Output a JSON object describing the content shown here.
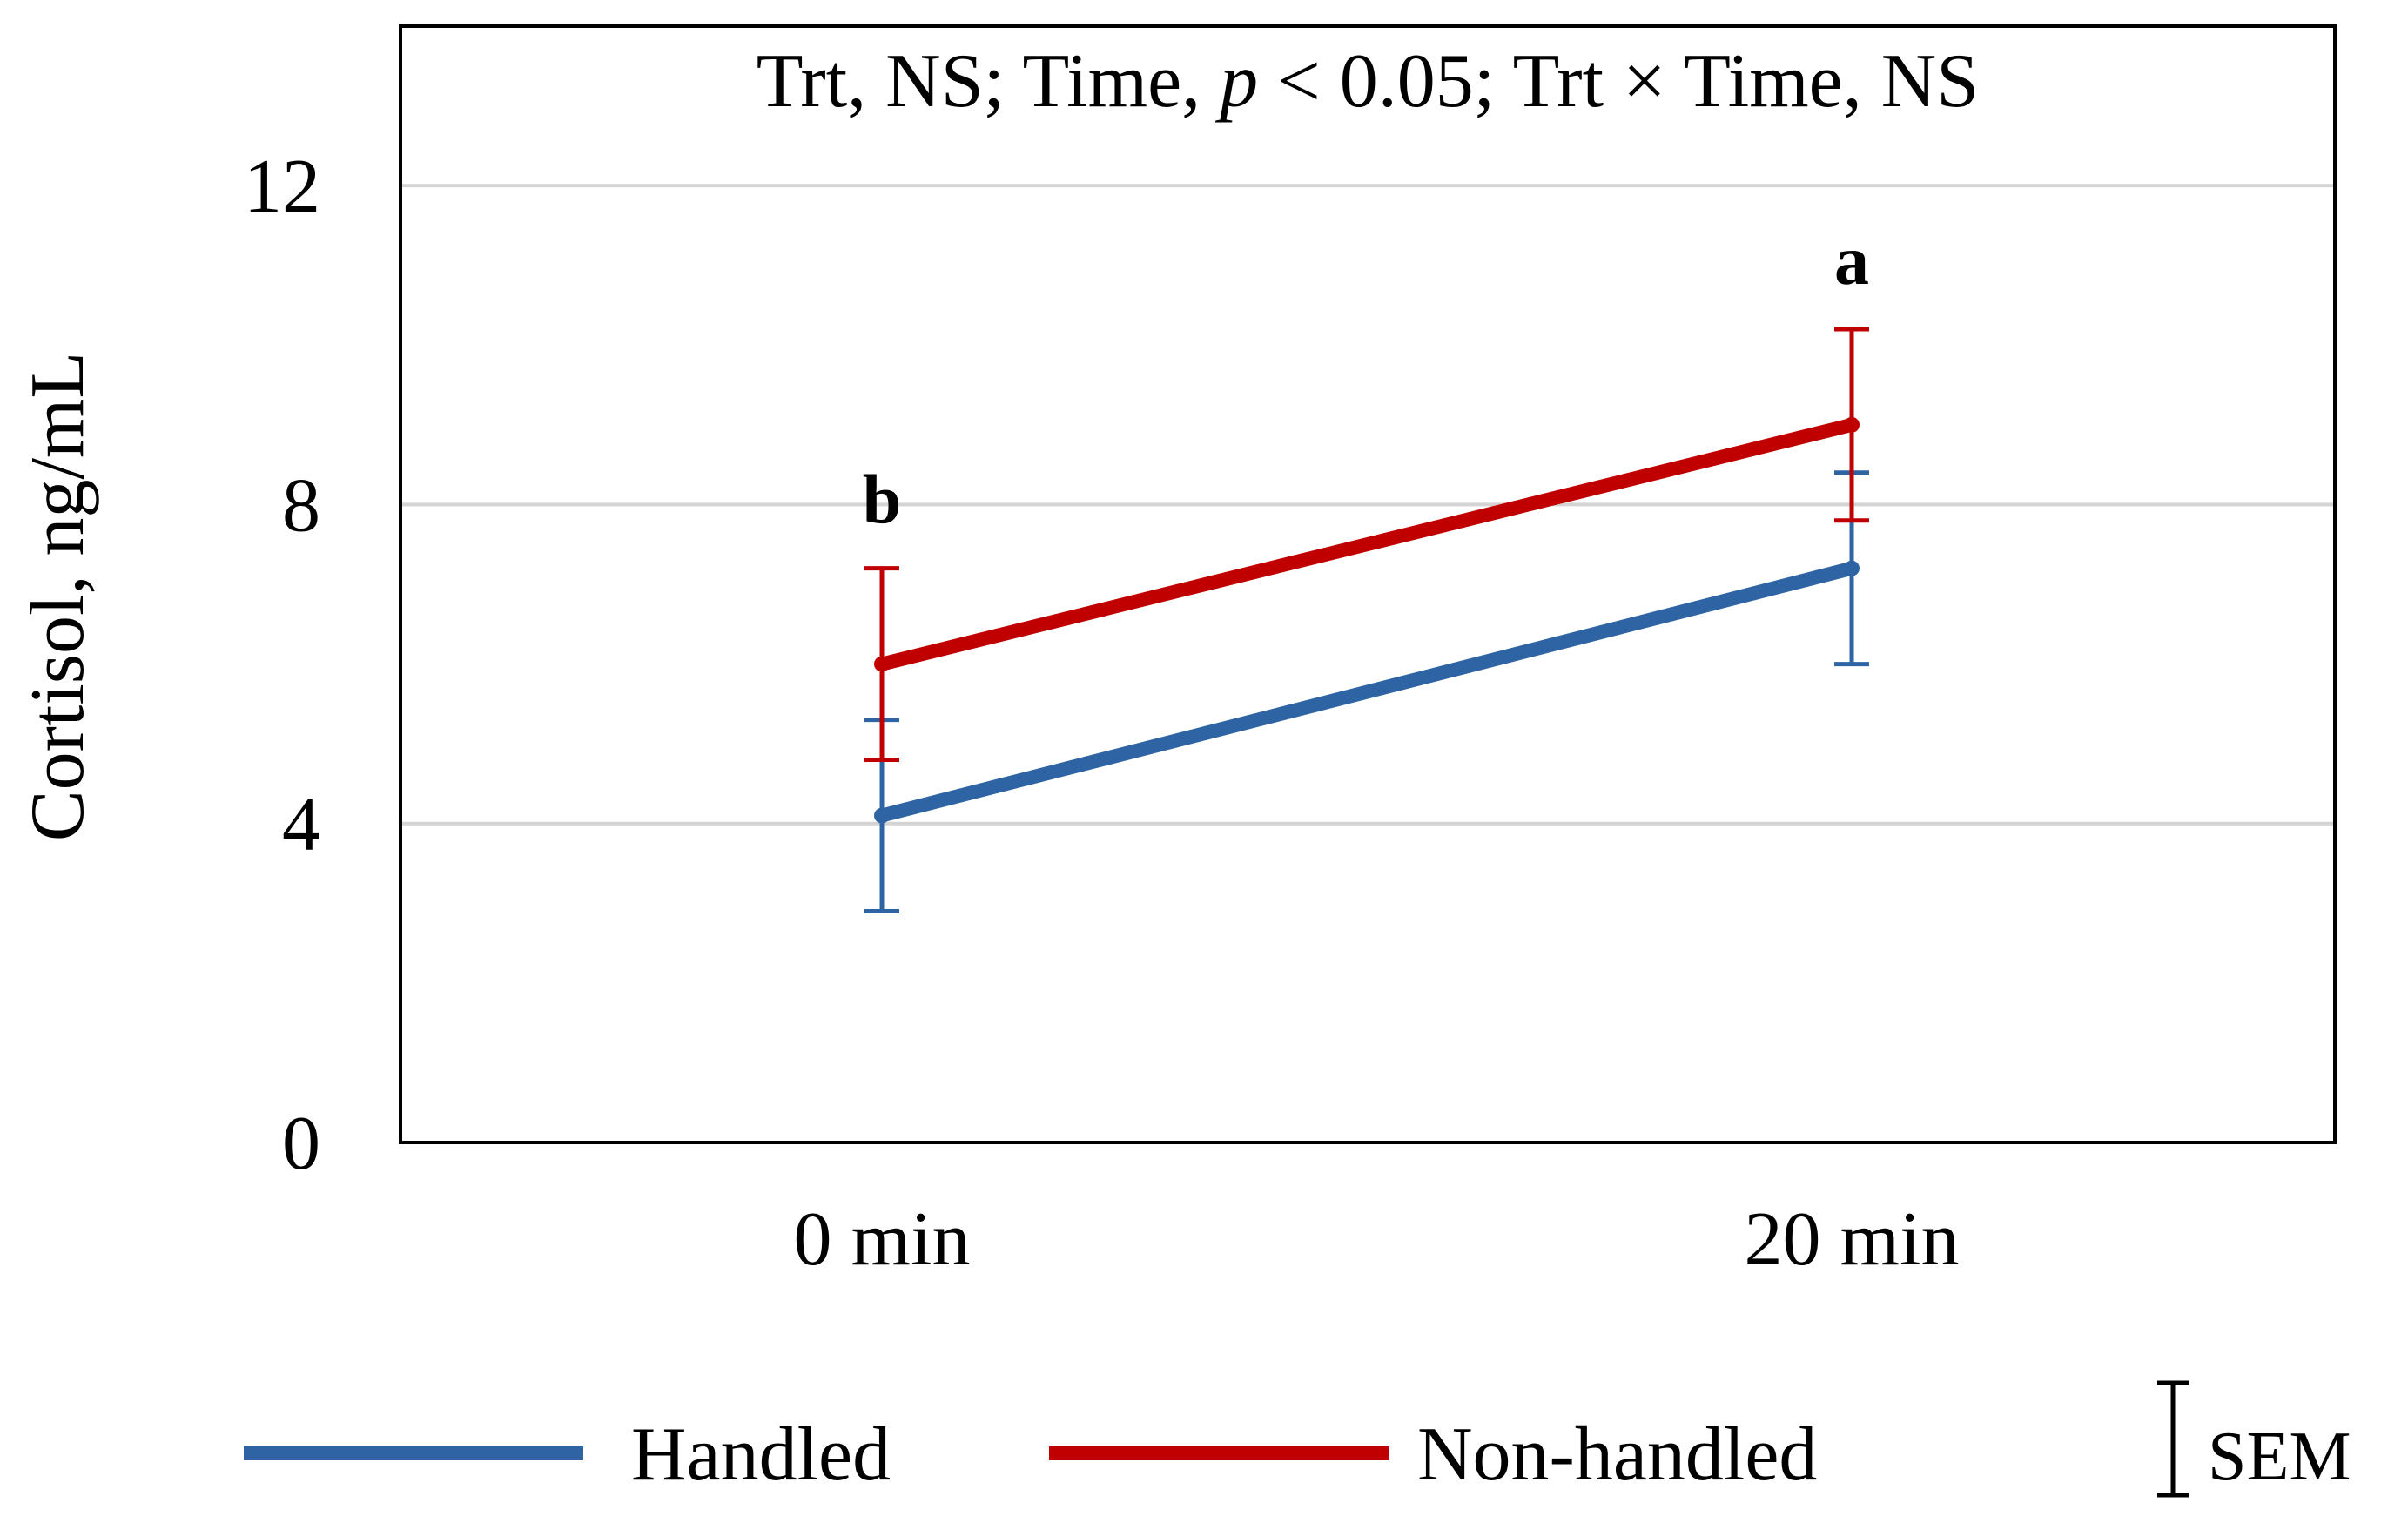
{
  "chart_data": {
    "type": "line",
    "title_parts": {
      "a": "Trt, NS; Time, ",
      "p": "p",
      "b": " < 0.05; Trt × Time, NS"
    },
    "ylabel": "Cortisol, ng/mL",
    "xlabel": "",
    "categories": [
      "0 min",
      "20 min"
    ],
    "ylim": [
      0,
      14
    ],
    "yticks": [
      0,
      4,
      8,
      12
    ],
    "grid": true,
    "series": [
      {
        "name": "Handled",
        "color": "#2e64a4",
        "values": [
          4.1,
          7.2
        ],
        "sem": [
          1.2,
          1.2
        ]
      },
      {
        "name": "Non-handled",
        "color": "#c00000",
        "values": [
          6.0,
          9.0
        ],
        "sem": [
          1.2,
          1.2
        ]
      }
    ],
    "annotations": [
      {
        "category": "0 min",
        "text": "b"
      },
      {
        "category": "20 min",
        "text": "a"
      }
    ],
    "legend": {
      "position": "bottom",
      "sem_label": "SEM"
    }
  }
}
